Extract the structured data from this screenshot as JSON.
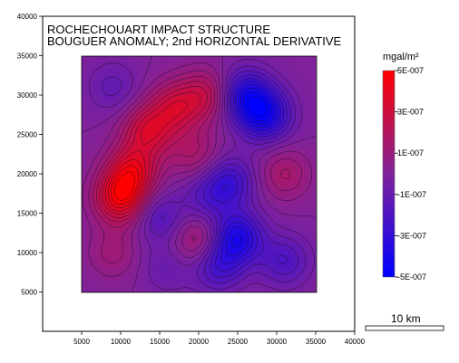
{
  "chart_data": {
    "type": "heatmap",
    "title": "ROCHECHOUART IMPACT STRUCTURE",
    "subtitle": "BOUGUER ANOMALY;  2nd HORIZONTAL DERIVATIVE",
    "xlim": [
      0,
      40000
    ],
    "ylim": [
      0,
      40000
    ],
    "data_extent": {
      "x": [
        5000,
        35000
      ],
      "y": [
        5000,
        35000
      ]
    },
    "x_ticks": [
      5000,
      10000,
      15000,
      20000,
      25000,
      30000,
      35000,
      40000
    ],
    "x_tick_labels": [
      "5000",
      "10000",
      "15000",
      "20000",
      "25000",
      "30000",
      "35000",
      "40000"
    ],
    "y_ticks": [
      5000,
      10000,
      15000,
      20000,
      25000,
      30000,
      35000,
      40000
    ],
    "y_tick_labels": [
      "5000",
      "10000",
      "15000",
      "20000",
      "25000",
      "30000",
      "35000",
      "40000"
    ],
    "grid": false,
    "colorbar": {
      "unit": "mgal/m²",
      "min": -5e-07,
      "max": 5e-07,
      "placement": "right",
      "ticks": [
        5e-07,
        3e-07,
        1e-07,
        -1e-07,
        -3e-07,
        -5e-07
      ],
      "tick_labels": [
        "5E-007",
        "3E-007",
        "1E-007",
        "-1E-007",
        "-3E-007",
        "-5E-007"
      ],
      "colors": {
        "low": "#0000ff",
        "mid": "#80229a",
        "high": "#ff0000"
      }
    },
    "features": [
      {
        "x": 10000,
        "y": 17000,
        "value": 4.5e-07
      },
      {
        "x": 11500,
        "y": 20500,
        "value": 3.5e-07
      },
      {
        "x": 13500,
        "y": 25500,
        "value": 3.2e-07
      },
      {
        "x": 17000,
        "y": 28500,
        "value": 2.8e-07
      },
      {
        "x": 21000,
        "y": 30000,
        "value": 2.4e-07
      },
      {
        "x": 19500,
        "y": 22500,
        "value": 1.6e-07
      },
      {
        "x": 20000,
        "y": 11500,
        "value": 2e-07
      },
      {
        "x": 9000,
        "y": 10000,
        "value": 1.2e-07
      },
      {
        "x": 31000,
        "y": 20000,
        "value": 1.6e-07
      },
      {
        "x": 26000,
        "y": 30000,
        "value": -3.5e-07
      },
      {
        "x": 28500,
        "y": 27500,
        "value": -4e-07
      },
      {
        "x": 24000,
        "y": 19000,
        "value": -2.5e-07
      },
      {
        "x": 25000,
        "y": 12000,
        "value": -3.8e-07
      },
      {
        "x": 22500,
        "y": 8500,
        "value": -2.5e-07
      },
      {
        "x": 31000,
        "y": 9000,
        "value": -2e-07
      },
      {
        "x": 15000,
        "y": 14500,
        "value": -1.8e-07
      },
      {
        "x": 9000,
        "y": 31000,
        "value": -1.2e-07
      },
      {
        "x": 16000,
        "y": 8000,
        "value": -1e-07
      },
      {
        "x": 21000,
        "y": 17000,
        "value": -1.5e-07
      }
    ],
    "scale_bar": {
      "label": "10 km",
      "length": 10000
    }
  }
}
